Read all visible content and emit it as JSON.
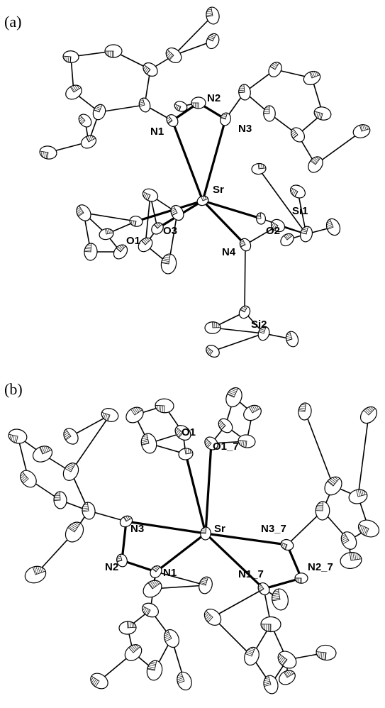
{
  "panels": [
    {
      "label": "(a)",
      "atoms": [
        "N2",
        "N1",
        "N3",
        "Sr",
        "Si1",
        "O2",
        "O3",
        "O1",
        "N4",
        "Si2"
      ]
    },
    {
      "label": "(b)",
      "atoms": [
        "O1",
        "O1_7",
        "Sr",
        "N3",
        "N3_7",
        "N2",
        "N1",
        "N2_7",
        "N1_7"
      ]
    }
  ]
}
